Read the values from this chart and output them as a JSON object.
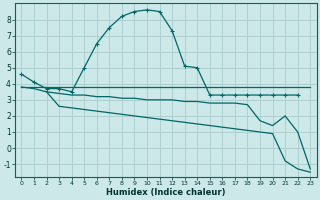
{
  "xlabel": "Humidex (Indice chaleur)",
  "bg_color": "#cce8e8",
  "grid_color": "#aacccc",
  "line_color": "#006666",
  "xlim": [
    -0.5,
    23.5
  ],
  "ylim": [
    -1.8,
    9.0
  ],
  "yticks": [
    -1,
    0,
    1,
    2,
    3,
    4,
    5,
    6,
    7,
    8
  ],
  "xticks": [
    0,
    1,
    2,
    3,
    4,
    5,
    6,
    7,
    8,
    9,
    10,
    11,
    12,
    13,
    14,
    15,
    16,
    17,
    18,
    19,
    20,
    21,
    22,
    23
  ],
  "line1_x": [
    0,
    1,
    2,
    3,
    4,
    5,
    6,
    7,
    8,
    9,
    10,
    11,
    12,
    13,
    14,
    15,
    16,
    17,
    18,
    19,
    20,
    21,
    22
  ],
  "line1_y": [
    4.6,
    4.1,
    3.7,
    3.7,
    3.5,
    5.0,
    6.5,
    7.5,
    8.2,
    8.5,
    8.6,
    8.5,
    7.3,
    5.1,
    5.0,
    3.3,
    3.3,
    3.3,
    3.3,
    3.3,
    3.3,
    3.3,
    3.3
  ],
  "line2_x": [
    0,
    1,
    2,
    3,
    4,
    5,
    6,
    7,
    8,
    9,
    10,
    11,
    12,
    13,
    14,
    15,
    16,
    17,
    18,
    19,
    20,
    21,
    22,
    23
  ],
  "line2_y": [
    3.8,
    3.8,
    3.8,
    3.8,
    3.8,
    3.8,
    3.8,
    3.8,
    3.8,
    3.8,
    3.8,
    3.8,
    3.8,
    3.8,
    3.8,
    3.8,
    3.8,
    3.8,
    3.8,
    3.8,
    3.8,
    3.8,
    3.8,
    3.8
  ],
  "line3_x": [
    2,
    3,
    4,
    5,
    6,
    7,
    8,
    9,
    10,
    11,
    12,
    13,
    14,
    15,
    16,
    17,
    18,
    19,
    20,
    21,
    22,
    23
  ],
  "line3_y": [
    3.5,
    3.4,
    3.3,
    3.3,
    3.2,
    3.2,
    3.1,
    3.1,
    3.0,
    3.0,
    3.0,
    2.9,
    2.9,
    2.8,
    2.8,
    2.8,
    2.7,
    1.7,
    1.4,
    2.0,
    1.0,
    -1.3
  ],
  "line4_x": [
    0,
    1,
    2,
    3,
    4,
    5,
    6,
    7,
    8,
    9,
    10,
    11,
    12,
    13,
    14,
    15,
    16,
    17,
    18,
    19,
    20,
    21,
    22,
    23
  ],
  "line4_y": [
    3.8,
    3.7,
    3.5,
    2.6,
    2.5,
    2.4,
    2.3,
    2.2,
    2.1,
    2.0,
    1.9,
    1.8,
    1.7,
    1.6,
    1.5,
    1.4,
    1.3,
    1.2,
    1.1,
    1.0,
    0.9,
    -0.8,
    -1.3,
    -1.5
  ]
}
